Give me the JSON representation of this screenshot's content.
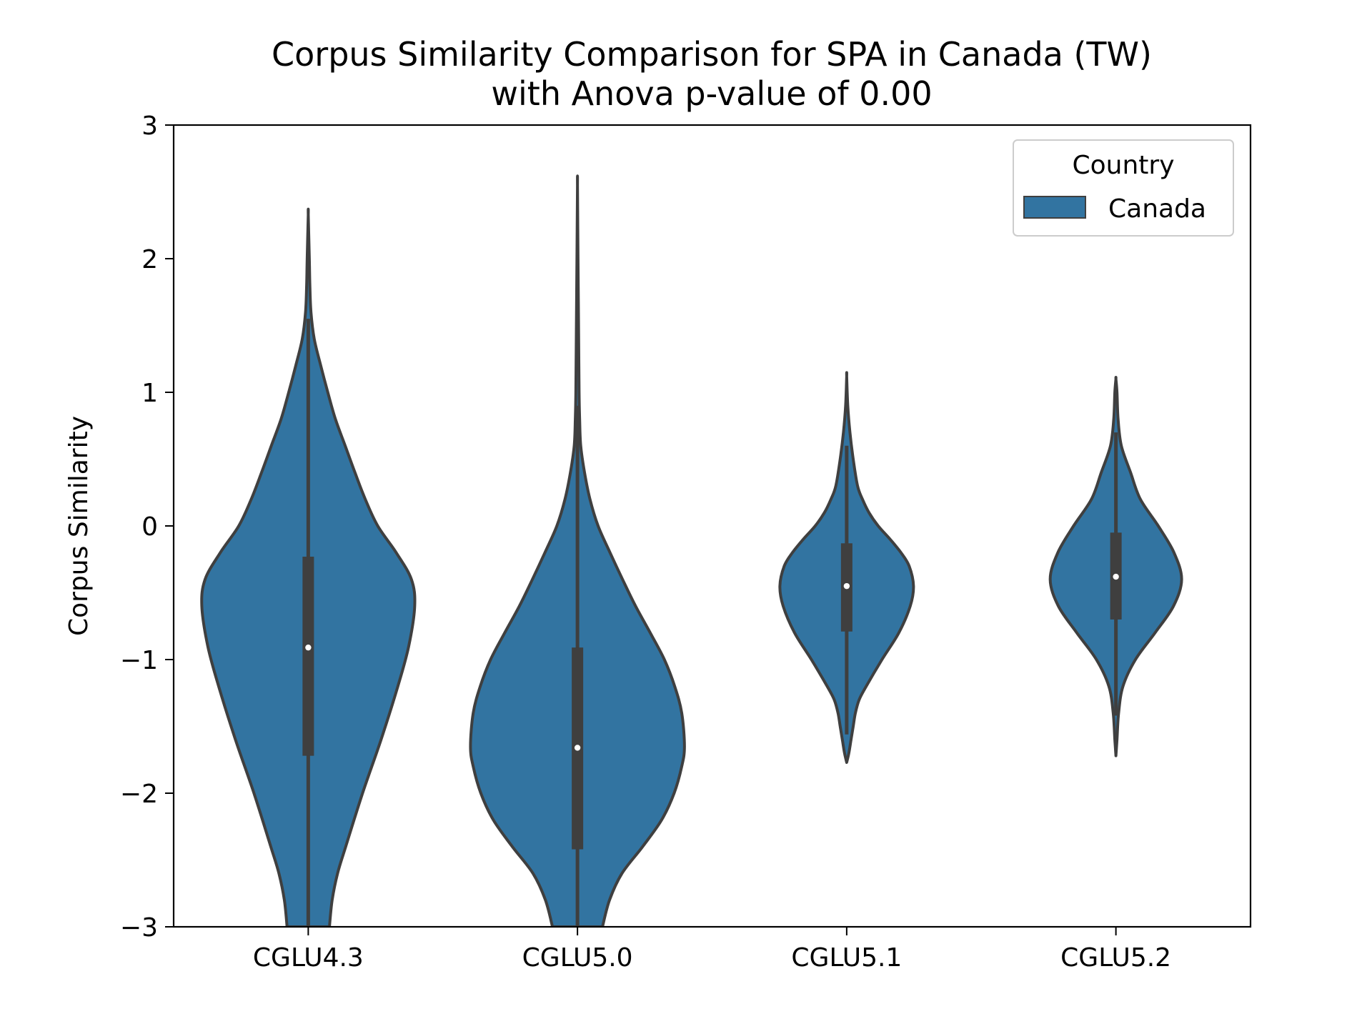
{
  "chart_data": {
    "type": "violin",
    "title_lines": [
      "Corpus Similarity Comparison for SPA in Canada (TW)",
      "with Anova p-value of 0.00"
    ],
    "xlabel": "",
    "ylabel": "Corpus Similarity",
    "ylim": [
      -3,
      3
    ],
    "yticks": [
      3,
      2,
      1,
      0,
      -1,
      -2,
      -3
    ],
    "ytick_labels": [
      "3",
      "2",
      "1",
      "0",
      "−1",
      "−2",
      "−3"
    ],
    "categories": [
      "CGLU4.3",
      "CGLU5.0",
      "CGLU5.1",
      "CGLU5.2"
    ],
    "grid": false,
    "legend": {
      "title": "Country",
      "placement": "top-right",
      "entries": [
        "Canada"
      ]
    },
    "colors": {
      "fill": "#3274a1",
      "edge": "#3f3f3f",
      "median": "#ffffff"
    },
    "series": [
      {
        "name": "Canada",
        "violins": [
          {
            "category": "CGLU4.3",
            "whisker_low": -3.0,
            "q1": -1.72,
            "median": -0.91,
            "q3": -0.23,
            "whisker_high": 1.55,
            "density_profile": [
              [
                -3.0,
                0.39
              ],
              [
                -2.8,
                0.44
              ],
              [
                -2.6,
                0.54
              ],
              [
                -2.4,
                0.69
              ],
              [
                -2.0,
                1.0
              ],
              [
                -1.6,
                1.34
              ],
              [
                -1.2,
                1.65
              ],
              [
                -0.9,
                1.85
              ],
              [
                -0.6,
                1.96
              ],
              [
                -0.4,
                1.9
              ],
              [
                -0.2,
                1.62
              ],
              [
                0.0,
                1.28
              ],
              [
                0.2,
                1.05
              ],
              [
                0.4,
                0.86
              ],
              [
                0.6,
                0.68
              ],
              [
                0.8,
                0.5
              ],
              [
                1.0,
                0.36
              ],
              [
                1.2,
                0.23
              ],
              [
                1.4,
                0.11
              ],
              [
                1.6,
                0.05
              ],
              [
                1.8,
                0.03
              ],
              [
                2.0,
                0.02
              ],
              [
                2.33,
                0.0
              ]
            ]
          },
          {
            "category": "CGLU5.0",
            "whisker_low": -3.0,
            "q1": -2.42,
            "median": -1.66,
            "q3": -0.91,
            "whisker_high": 0.9,
            "density_profile": [
              [
                -3.0,
                0.46
              ],
              [
                -2.8,
                0.59
              ],
              [
                -2.6,
                0.82
              ],
              [
                -2.4,
                1.2
              ],
              [
                -2.2,
                1.55
              ],
              [
                -2.0,
                1.78
              ],
              [
                -1.8,
                1.92
              ],
              [
                -1.65,
                1.97
              ],
              [
                -1.4,
                1.92
              ],
              [
                -1.2,
                1.79
              ],
              [
                -1.0,
                1.6
              ],
              [
                -0.8,
                1.34
              ],
              [
                -0.6,
                1.07
              ],
              [
                -0.4,
                0.83
              ],
              [
                -0.2,
                0.6
              ],
              [
                0.0,
                0.38
              ],
              [
                0.2,
                0.23
              ],
              [
                0.4,
                0.13
              ],
              [
                0.6,
                0.06
              ],
              [
                0.8,
                0.04
              ],
              [
                1.0,
                0.03
              ],
              [
                1.5,
                0.02
              ],
              [
                2.0,
                0.01
              ],
              [
                2.55,
                0.0
              ]
            ]
          },
          {
            "category": "CGLU5.1",
            "whisker_low": -1.56,
            "q1": -0.79,
            "median": -0.45,
            "q3": -0.13,
            "whisker_high": 0.6,
            "density_profile": [
              [
                -1.77,
                0.0
              ],
              [
                -1.7,
                0.04
              ],
              [
                -1.6,
                0.08
              ],
              [
                -1.5,
                0.12
              ],
              [
                -1.4,
                0.16
              ],
              [
                -1.3,
                0.23
              ],
              [
                -1.2,
                0.36
              ],
              [
                -1.0,
                0.65
              ],
              [
                -0.8,
                0.96
              ],
              [
                -0.6,
                1.17
              ],
              [
                -0.45,
                1.23
              ],
              [
                -0.3,
                1.15
              ],
              [
                -0.2,
                1.0
              ],
              [
                -0.1,
                0.8
              ],
              [
                0.0,
                0.58
              ],
              [
                0.1,
                0.41
              ],
              [
                0.2,
                0.29
              ],
              [
                0.3,
                0.2
              ],
              [
                0.5,
                0.12
              ],
              [
                0.7,
                0.06
              ],
              [
                0.9,
                0.02
              ],
              [
                1.12,
                0.0
              ]
            ]
          },
          {
            "category": "CGLU5.2",
            "whisker_low": -1.42,
            "q1": -0.7,
            "median": -0.38,
            "q3": -0.05,
            "whisker_high": 0.7,
            "density_profile": [
              [
                -1.72,
                0.0
              ],
              [
                -1.6,
                0.02
              ],
              [
                -1.4,
                0.05
              ],
              [
                -1.2,
                0.13
              ],
              [
                -1.0,
                0.36
              ],
              [
                -0.8,
                0.72
              ],
              [
                -0.6,
                1.06
              ],
              [
                -0.4,
                1.21
              ],
              [
                -0.2,
                1.07
              ],
              [
                0.0,
                0.78
              ],
              [
                0.2,
                0.45
              ],
              [
                0.4,
                0.27
              ],
              [
                0.6,
                0.1
              ],
              [
                0.8,
                0.04
              ],
              [
                1.0,
                0.02
              ],
              [
                1.1,
                0.0
              ]
            ]
          }
        ]
      }
    ]
  }
}
